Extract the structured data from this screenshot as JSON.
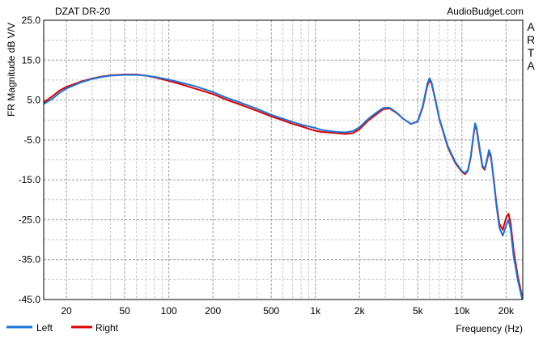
{
  "chart_data": {
    "type": "line",
    "title": "DZAT DR-20",
    "source": "AudioBudget.com",
    "watermark": [
      "A",
      "R",
      "T",
      "A"
    ],
    "xlabel": "Frequency (Hz)",
    "ylabel": "FR Magnitude dB V/V",
    "xscale": "log",
    "xlim": [
      14,
      26000
    ],
    "ylim": [
      -45,
      25
    ],
    "grid": true,
    "legend_position": "bottom-left",
    "y_ticks": [
      {
        "v": 25,
        "label": "25.0"
      },
      {
        "v": 15,
        "label": "15.0"
      },
      {
        "v": 5,
        "label": "5.0"
      },
      {
        "v": -5,
        "label": "-5.0"
      },
      {
        "v": -15,
        "label": "-15.0"
      },
      {
        "v": -25,
        "label": "-25.0"
      },
      {
        "v": -35,
        "label": "-35.0"
      },
      {
        "v": -45,
        "label": "-45.0"
      }
    ],
    "x_ticks": [
      {
        "v": 20,
        "label": "20"
      },
      {
        "v": 50,
        "label": "50"
      },
      {
        "v": 100,
        "label": "100"
      },
      {
        "v": 200,
        "label": "200"
      },
      {
        "v": 500,
        "label": "500"
      },
      {
        "v": 1000,
        "label": "1k"
      },
      {
        "v": 2000,
        "label": "2k"
      },
      {
        "v": 5000,
        "label": "5k"
      },
      {
        "v": 10000,
        "label": "10k"
      },
      {
        "v": 20000,
        "label": "20k"
      }
    ],
    "series": [
      {
        "name": "Left",
        "color": "#1a73d9",
        "points": [
          [
            14,
            4.0
          ],
          [
            16,
            5.3
          ],
          [
            18,
            6.8
          ],
          [
            20,
            7.9
          ],
          [
            25,
            9.4
          ],
          [
            30,
            10.3
          ],
          [
            35,
            10.8
          ],
          [
            40,
            11.1
          ],
          [
            50,
            11.3
          ],
          [
            60,
            11.3
          ],
          [
            70,
            11.1
          ],
          [
            80,
            10.8
          ],
          [
            100,
            10.1
          ],
          [
            120,
            9.4
          ],
          [
            150,
            8.5
          ],
          [
            200,
            7.0
          ],
          [
            250,
            5.5
          ],
          [
            300,
            4.5
          ],
          [
            400,
            2.8
          ],
          [
            500,
            1.3
          ],
          [
            600,
            0.3
          ],
          [
            700,
            -0.5
          ],
          [
            800,
            -1.2
          ],
          [
            900,
            -1.6
          ],
          [
            1000,
            -2.0
          ],
          [
            1100,
            -2.5
          ],
          [
            1200,
            -2.7
          ],
          [
            1400,
            -3.0
          ],
          [
            1600,
            -3.1
          ],
          [
            1800,
            -2.8
          ],
          [
            2000,
            -1.8
          ],
          [
            2300,
            0.3
          ],
          [
            2600,
            1.8
          ],
          [
            2900,
            3.0
          ],
          [
            3200,
            3.1
          ],
          [
            3600,
            1.8
          ],
          [
            4000,
            0.2
          ],
          [
            4500,
            -1.0
          ],
          [
            5000,
            -0.3
          ],
          [
            5400,
            3.5
          ],
          [
            5800,
            9.0
          ],
          [
            6000,
            10.5
          ],
          [
            6200,
            9.5
          ],
          [
            6600,
            5.0
          ],
          [
            7000,
            0.5
          ],
          [
            8000,
            -6.5
          ],
          [
            9000,
            -10.5
          ],
          [
            10000,
            -12.8
          ],
          [
            10500,
            -13.3
          ],
          [
            11000,
            -12.5
          ],
          [
            11500,
            -9.0
          ],
          [
            12000,
            -3.5
          ],
          [
            12300,
            -0.8
          ],
          [
            12600,
            -2.0
          ],
          [
            13200,
            -7.0
          ],
          [
            13800,
            -11.5
          ],
          [
            14300,
            -12.2
          ],
          [
            14800,
            -10.0
          ],
          [
            15300,
            -7.5
          ],
          [
            15800,
            -9.0
          ],
          [
            16500,
            -15.5
          ],
          [
            17200,
            -21.5
          ],
          [
            18000,
            -27.0
          ],
          [
            19000,
            -29.0
          ],
          [
            20000,
            -26.5
          ],
          [
            20800,
            -25.0
          ],
          [
            21500,
            -27.5
          ],
          [
            22500,
            -34.0
          ],
          [
            24000,
            -40.0
          ],
          [
            26000,
            -45.5
          ]
        ]
      },
      {
        "name": "Right",
        "color": "#e00000",
        "points": [
          [
            14,
            4.4
          ],
          [
            16,
            5.9
          ],
          [
            18,
            7.4
          ],
          [
            20,
            8.3
          ],
          [
            25,
            9.6
          ],
          [
            30,
            10.4
          ],
          [
            35,
            10.9
          ],
          [
            40,
            11.2
          ],
          [
            50,
            11.4
          ],
          [
            60,
            11.4
          ],
          [
            70,
            11.1
          ],
          [
            80,
            10.7
          ],
          [
            100,
            9.8
          ],
          [
            120,
            9.0
          ],
          [
            150,
            7.9
          ],
          [
            200,
            6.5
          ],
          [
            250,
            5.0
          ],
          [
            300,
            4.0
          ],
          [
            400,
            2.3
          ],
          [
            500,
            0.9
          ],
          [
            600,
            -0.1
          ],
          [
            700,
            -1.0
          ],
          [
            800,
            -1.6
          ],
          [
            900,
            -2.2
          ],
          [
            1000,
            -2.7
          ],
          [
            1100,
            -3.0
          ],
          [
            1200,
            -3.1
          ],
          [
            1400,
            -3.3
          ],
          [
            1600,
            -3.5
          ],
          [
            1800,
            -3.3
          ],
          [
            2000,
            -2.3
          ],
          [
            2300,
            -0.1
          ],
          [
            2600,
            1.4
          ],
          [
            2900,
            2.7
          ],
          [
            3200,
            2.9
          ],
          [
            3600,
            1.7
          ],
          [
            4000,
            0.2
          ],
          [
            4500,
            -1.0
          ],
          [
            5000,
            -0.4
          ],
          [
            5400,
            3.2
          ],
          [
            5800,
            8.5
          ],
          [
            6000,
            10.0
          ],
          [
            6200,
            9.2
          ],
          [
            6600,
            4.8
          ],
          [
            7000,
            0.3
          ],
          [
            8000,
            -6.8
          ],
          [
            9000,
            -10.8
          ],
          [
            10000,
            -13.0
          ],
          [
            10500,
            -13.6
          ],
          [
            11000,
            -12.7
          ],
          [
            11500,
            -9.3
          ],
          [
            12000,
            -3.8
          ],
          [
            12300,
            -1.2
          ],
          [
            12600,
            -2.5
          ],
          [
            13200,
            -7.5
          ],
          [
            13800,
            -11.8
          ],
          [
            14300,
            -12.5
          ],
          [
            14800,
            -10.3
          ],
          [
            15300,
            -8.0
          ],
          [
            15800,
            -9.5
          ],
          [
            16500,
            -15.0
          ],
          [
            17200,
            -21.0
          ],
          [
            18000,
            -26.0
          ],
          [
            19000,
            -27.5
          ],
          [
            20000,
            -24.5
          ],
          [
            20800,
            -23.5
          ],
          [
            21500,
            -26.0
          ],
          [
            22500,
            -32.5
          ],
          [
            24000,
            -39.0
          ],
          [
            26000,
            -45.0
          ]
        ]
      }
    ]
  }
}
